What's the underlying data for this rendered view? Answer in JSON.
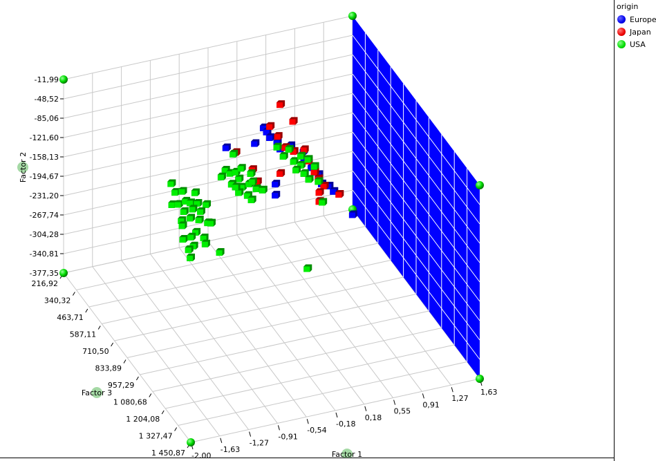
{
  "chart_data": {
    "type": "scatter3d",
    "axes": {
      "factor1": {
        "title": "Factor 1",
        "range": [
          -2.0,
          1.63
        ],
        "ticks": [
          "-2,00",
          "-1,63",
          "-1,27",
          "-0,91",
          "-0,54",
          "-0,18",
          "0,18",
          "0,55",
          "0,91",
          "1,27",
          "1,63"
        ]
      },
      "factor2": {
        "title": "Factor 2",
        "range": [
          -377.35,
          -11.99
        ],
        "ticks": [
          "-11,99",
          "-48,52",
          "-85,06",
          "-121,60",
          "-158,13",
          "-194,67",
          "-231,20",
          "-267,74",
          "-304,28",
          "-340,81",
          "-377,35"
        ]
      },
      "factor3": {
        "title": "Factor 3",
        "range": [
          216.92,
          1450.87
        ],
        "ticks": [
          "216,92",
          "340,32",
          "463,71",
          "587,11",
          "710,50",
          "833,89",
          "957,29",
          "1 080,68",
          "1 204,08",
          "1 327,47",
          "1 450,87"
        ]
      }
    },
    "grid": true,
    "highlighted_plane": {
      "axis": "factor1",
      "value": 1.63,
      "color": "#0000ff"
    },
    "legend": {
      "title": "origin",
      "placement": "right"
    },
    "point_format": "[factor1, factor2]",
    "factor3_estimate": 587.11,
    "series": [
      {
        "name": "Europe",
        "color": "#0000ff",
        "points": [
          [
            0.03,
            -73
          ],
          [
            0.07,
            -82
          ],
          [
            0.11,
            -94
          ],
          [
            -0.44,
            -95
          ],
          [
            -0.08,
            -99
          ],
          [
            0.2,
            -106
          ],
          [
            0.24,
            -120
          ],
          [
            0.37,
            -118
          ],
          [
            0.53,
            -134
          ],
          [
            0.54,
            -150
          ],
          [
            0.63,
            -168
          ],
          [
            0.72,
            -184
          ],
          [
            0.76,
            -203
          ],
          [
            0.85,
            -210
          ],
          [
            0.18,
            -184
          ],
          [
            0.18,
            -205
          ],
          [
            0.91,
            -222
          ],
          [
            1.15,
            -274
          ]
        ]
      },
      {
        "name": "Japan",
        "color": "#ff0000",
        "points": [
          [
            0.24,
            -36
          ],
          [
            0.4,
            -73
          ],
          [
            0.11,
            -73
          ],
          [
            0.21,
            -95
          ],
          [
            -0.32,
            -108
          ],
          [
            -0.11,
            -147
          ],
          [
            0.24,
            -166
          ],
          [
            -0.05,
            -172
          ],
          [
            0.3,
            -119
          ],
          [
            0.41,
            -130
          ],
          [
            0.59,
            -154
          ],
          [
            0.67,
            -178
          ],
          [
            0.72,
            -192
          ],
          [
            0.79,
            -208
          ],
          [
            0.73,
            -218
          ],
          [
            0.98,
            -230
          ],
          [
            0.54,
            -131
          ],
          [
            0.73,
            -235
          ]
        ]
      },
      {
        "name": "USA",
        "color": "#00ee00",
        "points": [
          [
            -1.13,
            -140
          ],
          [
            -1.08,
            -158
          ],
          [
            -0.99,
            -159
          ],
          [
            -0.83,
            -167
          ],
          [
            -1.12,
            -180
          ],
          [
            -1.04,
            -182
          ],
          [
            -0.95,
            -179
          ],
          [
            -0.89,
            -184
          ],
          [
            -0.8,
            -188
          ],
          [
            -0.69,
            -194
          ],
          [
            -0.97,
            -198
          ],
          [
            -0.86,
            -197
          ],
          [
            -0.76,
            -205
          ],
          [
            -1.0,
            -214
          ],
          [
            -0.89,
            -213
          ],
          [
            -0.78,
            -220
          ],
          [
            -0.67,
            -229
          ],
          [
            -0.99,
            -224
          ],
          [
            -0.82,
            -242
          ],
          [
            -0.72,
            -256
          ],
          [
            -0.98,
            -250
          ],
          [
            -0.88,
            -249
          ],
          [
            -0.85,
            -267
          ],
          [
            -0.7,
            -268
          ],
          [
            -0.89,
            -288
          ],
          [
            -0.52,
            -290
          ],
          [
            -0.91,
            -272
          ],
          [
            -0.63,
            -231
          ],
          [
            -0.45,
            -137
          ],
          [
            -0.5,
            -148
          ],
          [
            -0.39,
            -145
          ],
          [
            -0.28,
            -159
          ],
          [
            -0.32,
            -145
          ],
          [
            -0.37,
            -166
          ],
          [
            -0.24,
            -176
          ],
          [
            -0.15,
            -173
          ],
          [
            -0.28,
            -185
          ],
          [
            -0.17,
            -194
          ],
          [
            -0.11,
            -170
          ],
          [
            -0.06,
            -185
          ],
          [
            -0.13,
            -154
          ],
          [
            -0.25,
            -140
          ],
          [
            0.02,
            -190
          ],
          [
            -0.12,
            -204
          ],
          [
            -0.32,
            -173
          ],
          [
            -0.35,
            -110
          ],
          [
            0.2,
            -115
          ],
          [
            0.28,
            -135
          ],
          [
            0.35,
            -124
          ],
          [
            0.41,
            -149
          ],
          [
            0.5,
            -159
          ],
          [
            0.44,
            -166
          ],
          [
            0.54,
            -176
          ],
          [
            0.6,
            -189
          ],
          [
            0.67,
            -167
          ],
          [
            0.72,
            -197
          ],
          [
            0.5,
            -142
          ],
          [
            0.59,
            -151
          ],
          [
            0.77,
            -238
          ],
          [
            0.58,
            -357
          ]
        ]
      }
    ]
  }
}
